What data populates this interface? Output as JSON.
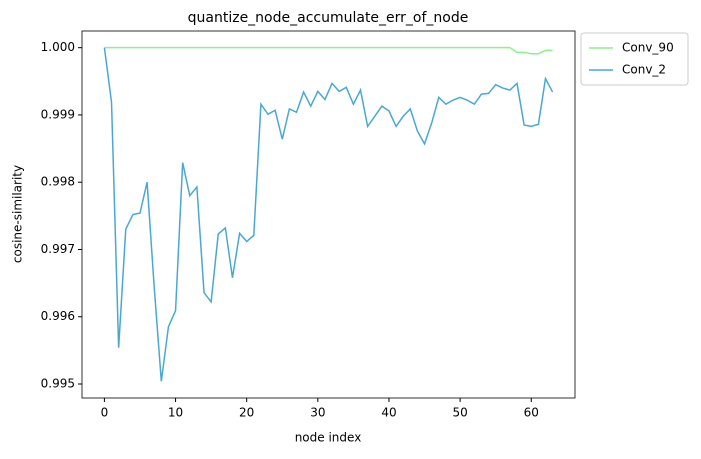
{
  "chart_data": {
    "type": "line",
    "title": "quantize_node_accumulate_err_of_node",
    "x_label": "node index",
    "y_label": "cosine-similarity",
    "x": [
      0,
      1,
      2,
      3,
      4,
      5,
      6,
      7,
      8,
      9,
      10,
      11,
      12,
      13,
      14,
      15,
      16,
      17,
      18,
      19,
      20,
      21,
      22,
      23,
      24,
      25,
      26,
      27,
      28,
      29,
      30,
      31,
      32,
      33,
      34,
      35,
      36,
      37,
      38,
      39,
      40,
      41,
      42,
      43,
      44,
      45,
      46,
      47,
      48,
      49,
      50,
      51,
      52,
      53,
      54,
      55,
      56,
      57,
      58,
      59,
      60,
      61,
      62,
      63
    ],
    "series": [
      {
        "name": "Conv_90",
        "color": "#90ee90",
        "values": [
          1,
          1,
          1,
          1,
          1,
          1,
          1,
          1,
          1,
          1,
          1,
          1,
          1,
          1,
          1,
          1,
          1,
          1,
          1,
          1,
          1,
          1,
          1,
          1,
          1,
          1,
          1,
          1,
          1,
          1,
          1,
          1,
          1,
          1,
          1,
          1,
          1,
          1,
          1,
          1,
          1,
          1,
          1,
          1,
          1,
          1,
          1,
          1,
          1,
          1,
          1,
          1,
          1,
          1,
          1,
          1,
          1,
          1,
          0.99993,
          0.99993,
          0.99991,
          0.99991,
          0.99996,
          0.99996
        ]
      },
      {
        "name": "Conv_2",
        "color": "#4aa8d0",
        "values": [
          1,
          0.99919,
          0.99554,
          0.9973,
          0.99752,
          0.99754,
          0.998,
          0.99644,
          0.99504,
          0.99585,
          0.99609,
          0.99829,
          0.9978,
          0.99793,
          0.99636,
          0.99622,
          0.99723,
          0.99732,
          0.99658,
          0.99724,
          0.99712,
          0.99721,
          0.99916,
          0.99901,
          0.99907,
          0.99864,
          0.99909,
          0.99904,
          0.99934,
          0.99913,
          0.99935,
          0.99923,
          0.99947,
          0.99935,
          0.99941,
          0.99916,
          0.99937,
          0.99883,
          0.99898,
          0.99913,
          0.99906,
          0.99883,
          0.99898,
          0.99909,
          0.99876,
          0.99857,
          0.99888,
          0.99926,
          0.99916,
          0.99922,
          0.99926,
          0.99922,
          0.99916,
          0.99931,
          0.99932,
          0.99945,
          0.9994,
          0.99937,
          0.99947,
          0.99885,
          0.99883,
          0.99886,
          0.99954,
          0.99934
        ]
      }
    ],
    "xlim": [
      -3.15,
      66.15
    ],
    "xticks": [
      0,
      10,
      20,
      30,
      40,
      50,
      60
    ],
    "ylim": [
      0.994792,
      1.000248
    ],
    "yticks": [
      {
        "value": 0.995,
        "label": "0.995"
      },
      {
        "value": 0.996,
        "label": "0.996"
      },
      {
        "value": 0.997,
        "label": "0.997"
      },
      {
        "value": 0.998,
        "label": "0.998"
      },
      {
        "value": 0.999,
        "label": "0.999"
      },
      {
        "value": 1.0,
        "label": "1.000"
      }
    ],
    "grid": false,
    "legend": "outside upper right"
  }
}
